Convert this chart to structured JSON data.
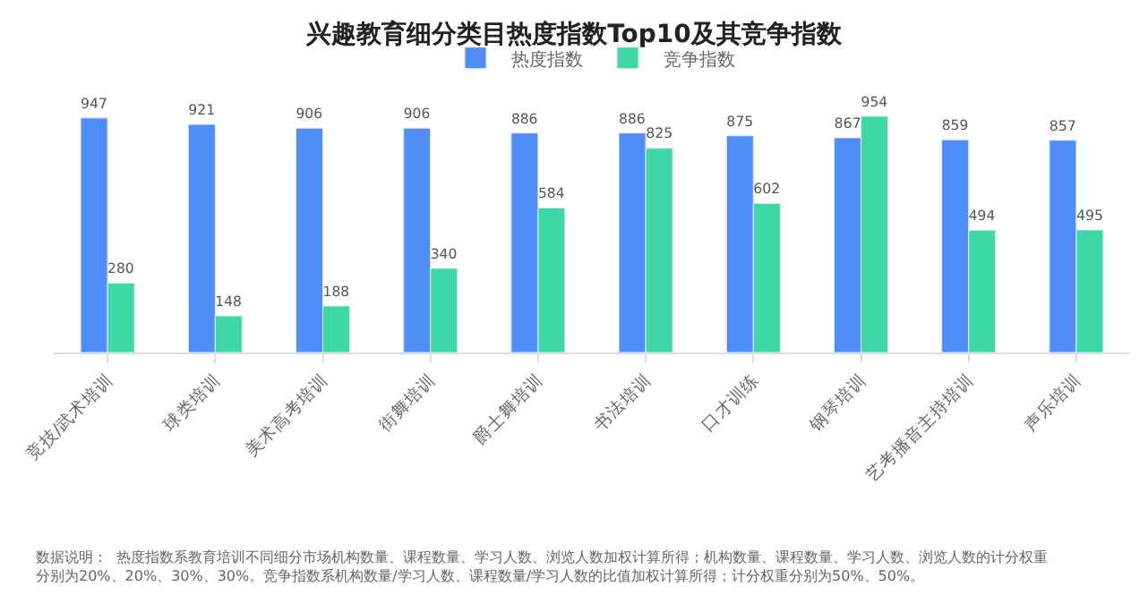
{
  "chart_data": {
    "type": "bar",
    "title": "兴趣教育细分类目热度指数Top10及其竞争指数",
    "categories": [
      "竞技/武术培训",
      "球类培训",
      "美术高考培训",
      "街舞培训",
      "爵士舞培训",
      "书法培训",
      "口才训练",
      "钢琴培训",
      "艺考播音主持培训",
      "声乐培训"
    ],
    "series": [
      {
        "name": "热度指数",
        "color": "#4f8ef7",
        "values": [
          947,
          921,
          906,
          906,
          886,
          886,
          875,
          867,
          859,
          857
        ]
      },
      {
        "name": "竞争指数",
        "color": "#3ed8a6",
        "values": [
          280,
          148,
          188,
          340,
          584,
          825,
          602,
          954,
          494,
          495
        ]
      }
    ],
    "data_labels": true,
    "legend": "top",
    "annotations": [
      "数据说明：  热度指数系教育培训不同细分市场机构数量、课程数量、学习人数、浏览人数加权计算所得；机构数量、课程数量、学习人数、浏览人数的计分权重分别为20%、20%、30%、30%。竞争指数系机构数量/学习人数、课程数量/学习人数的比值加权计算所得；计分权重分别为50%、50%。"
    ]
  }
}
